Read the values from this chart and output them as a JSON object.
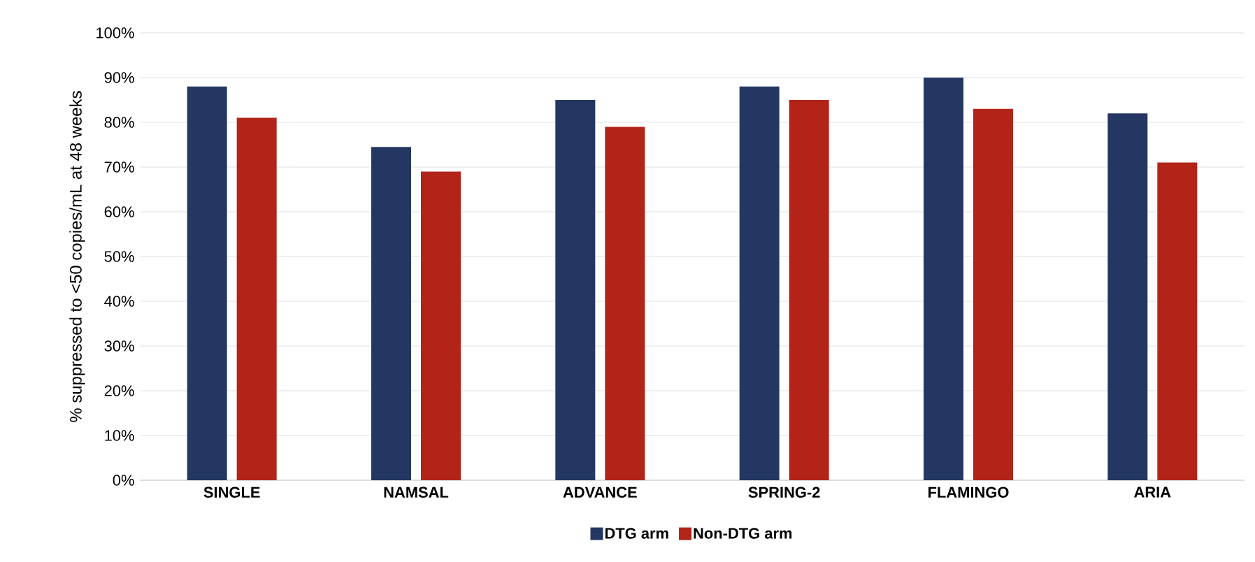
{
  "chart_data": {
    "type": "bar",
    "ylabel": "% suppressed to <50 copies/mL at 48 weeks",
    "categories": [
      "SINGLE",
      "NAMSAL",
      "ADVANCE",
      "SPRING-2",
      "FLAMINGO",
      "ARIA"
    ],
    "series": [
      {
        "name": "DTG arm",
        "color": "#243763",
        "values": [
          88,
          74.5,
          85,
          88,
          90,
          82
        ]
      },
      {
        "name": "Non-DTG arm",
        "color": "#b22418",
        "values": [
          81,
          69,
          79,
          85,
          83,
          71
        ]
      }
    ],
    "ylim": [
      0,
      100
    ],
    "yticks": [
      {
        "value": 0,
        "label": "0%"
      },
      {
        "value": 10,
        "label": "10%"
      },
      {
        "value": 20,
        "label": "20%"
      },
      {
        "value": 30,
        "label": "30%"
      },
      {
        "value": 40,
        "label": "40%"
      },
      {
        "value": 50,
        "label": "50%"
      },
      {
        "value": 60,
        "label": "60%"
      },
      {
        "value": 70,
        "label": "70%"
      },
      {
        "value": 80,
        "label": "80%"
      },
      {
        "value": 90,
        "label": "90%"
      },
      {
        "value": 100,
        "label": "100%"
      }
    ],
    "grid": "y",
    "legend": "bottom"
  }
}
